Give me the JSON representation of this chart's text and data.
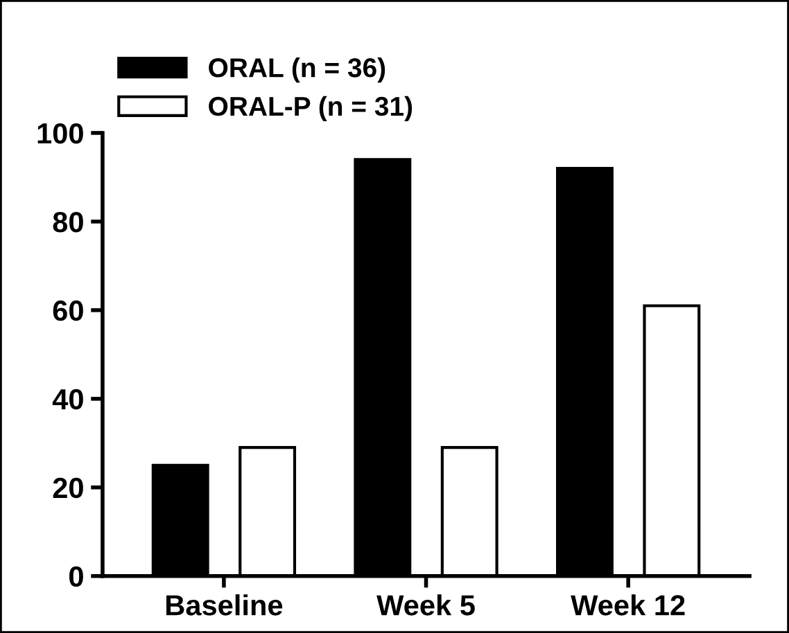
{
  "chart_data": {
    "type": "bar",
    "categories": [
      "Baseline",
      "Week 5",
      "Week 12"
    ],
    "series": [
      {
        "name": "ORAL (n = 36)",
        "color": "#000000",
        "values": [
          25,
          94,
          92
        ]
      },
      {
        "name": "ORAL-P (n = 31)",
        "color": "#ffffff",
        "values": [
          29,
          29,
          61
        ]
      }
    ],
    "ylim": [
      0,
      100
    ],
    "yticks": [
      0,
      20,
      40,
      60,
      80,
      100
    ],
    "grid": false,
    "legend": "top left"
  }
}
